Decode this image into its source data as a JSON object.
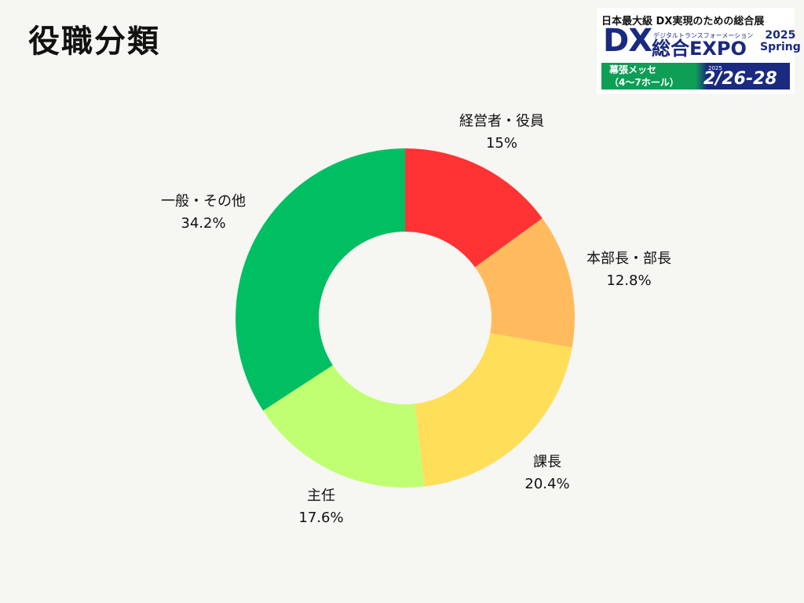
{
  "page": {
    "title": "役職分類"
  },
  "logo": {
    "tagline": "日本最大級 DX実現のための総合展",
    "dx": "DX",
    "subtitle": "デジタルトランスフォーメーション",
    "expo": "総合EXPO",
    "year": "2025",
    "season": "Spring",
    "venue_line1": "幕張メッセ",
    "venue_line2": "（4〜7ホール）",
    "date_year": "2025",
    "date": "2/26-28"
  },
  "chart_data": {
    "type": "pie",
    "donut": true,
    "title": "役職分類",
    "slices": [
      {
        "label": "経営者・役員",
        "value": 15,
        "display": "15%",
        "color": "#ff3333"
      },
      {
        "label": "本部長・部長",
        "value": 12.8,
        "display": "12.8%",
        "color": "#ffbb5e"
      },
      {
        "label": "課長",
        "value": 20.4,
        "display": "20.4%",
        "color": "#ffde59"
      },
      {
        "label": "主任",
        "value": 17.6,
        "display": "17.6%",
        "color": "#c1ff72"
      },
      {
        "label": "一般・その他",
        "value": 34.2,
        "display": "34.2%",
        "color": "#00bf63"
      }
    ]
  }
}
